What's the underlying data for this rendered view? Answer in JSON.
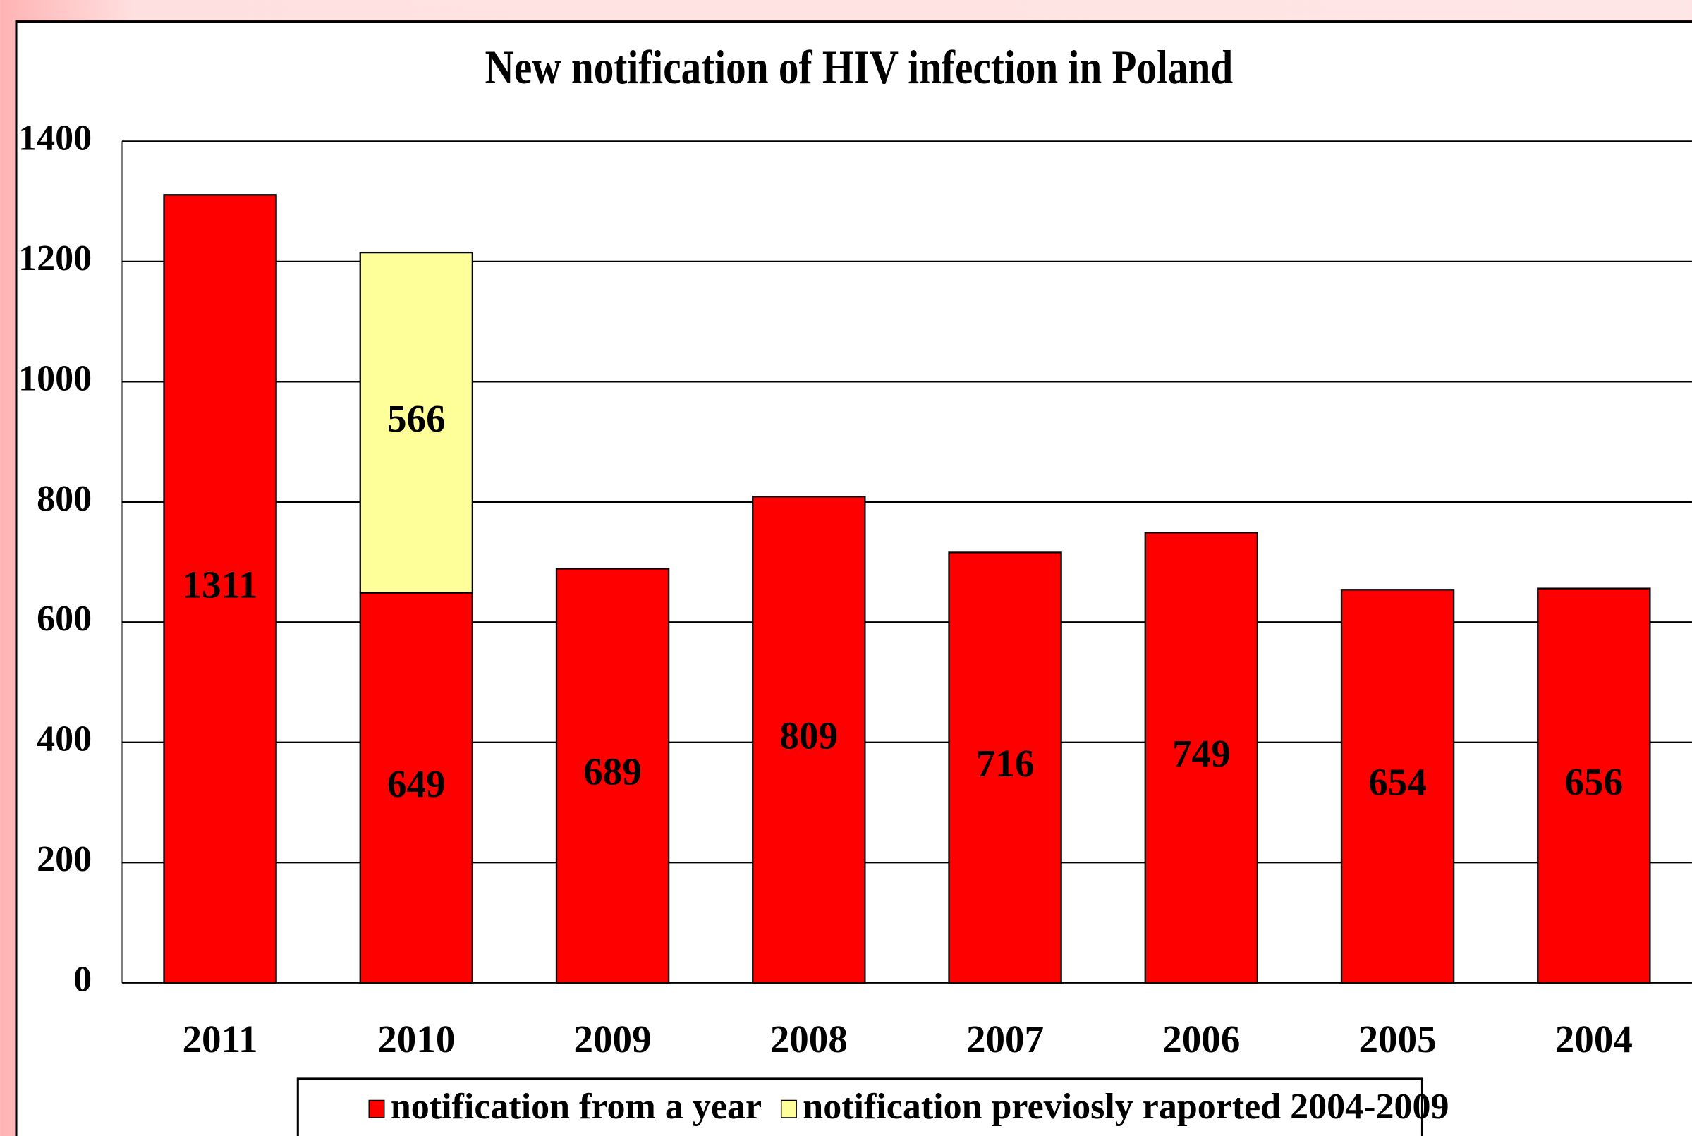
{
  "chart_data": {
    "type": "bar",
    "stacked": true,
    "title": "New notification of HIV infection in Poland",
    "categories": [
      "2011",
      "2010",
      "2009",
      "2008",
      "2007",
      "2006",
      "2005",
      "2004"
    ],
    "series": [
      {
        "name": "notification from a year",
        "color": "#ff0000",
        "values": [
          1311,
          649,
          689,
          809,
          716,
          749,
          654,
          656
        ]
      },
      {
        "name": "notification previosly raported 2004-2009",
        "color": "#ffff99",
        "values": [
          null,
          566,
          null,
          null,
          null,
          null,
          null,
          null
        ]
      }
    ],
    "ylim": [
      0,
      1400
    ],
    "yticks": [
      0,
      200,
      400,
      600,
      800,
      1000,
      1200,
      1400
    ],
    "grid": true,
    "legend": "bottom"
  }
}
